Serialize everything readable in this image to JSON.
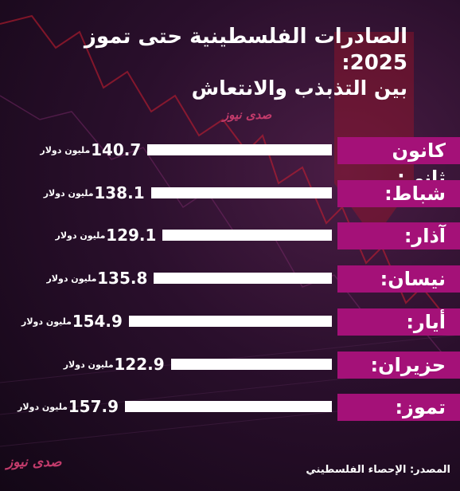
{
  "title": {
    "line1": "الصادرات الفلسطينية حتى تموز 2025:",
    "line2": "بين التذبذب والانتعاش"
  },
  "brand": {
    "logo_top": "صدى نيوز",
    "logo_bottom": "صدى نيوز"
  },
  "source": "المصدر: الإحصاء الفلسطيني",
  "colors": {
    "label_box": "#a41178",
    "bar": "#ffffff",
    "background": "#2a0f2c"
  },
  "chart_data": {
    "type": "bar",
    "orientation": "horizontal",
    "categories": [
      "كانون ثاني:",
      "شباط:",
      "آذار:",
      "نيسان:",
      "أيار:",
      "حزيران:",
      "تموز:"
    ],
    "values": [
      140.7,
      138.1,
      129.1,
      135.8,
      154.9,
      122.9,
      157.9
    ],
    "value_labels": [
      "140.7",
      "138.1",
      "129.1",
      "135.8",
      "154.9",
      "122.9",
      "157.9"
    ],
    "unit": "مليون دولار"
  }
}
